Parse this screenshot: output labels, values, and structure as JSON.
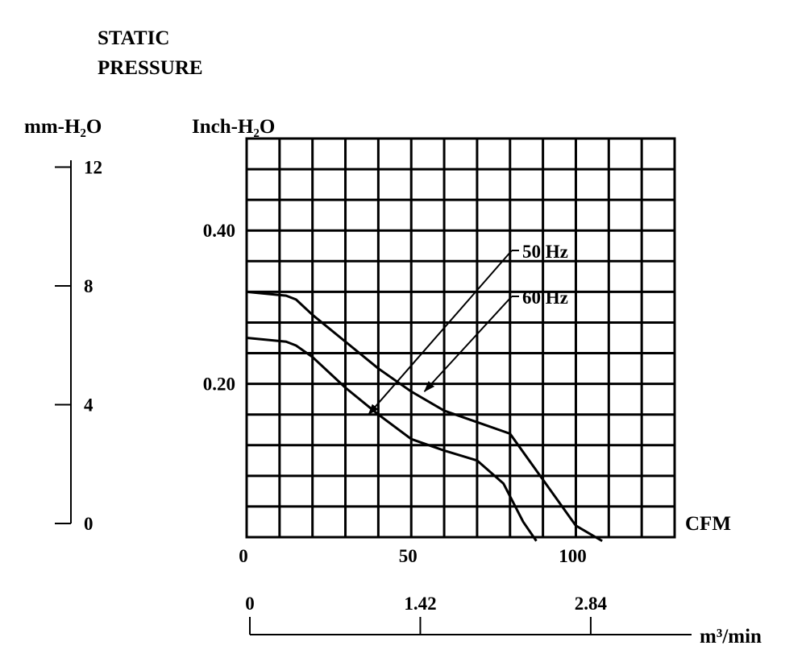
{
  "chart_data": {
    "type": "line",
    "title": "STATIC PRESSURE",
    "title_lines": [
      "STATIC",
      "PRESSURE"
    ],
    "xlabel": "CFM",
    "ylabel": "Inch-H₂O",
    "y_left_label": "mm-H₂O",
    "x_secondary_label": "m³/min",
    "xlim": [
      0,
      130
    ],
    "ylim": [
      0,
      0.52
    ],
    "grid": true,
    "x_ticks": [
      "0",
      "50",
      "100"
    ],
    "x_tick_values": [
      0,
      50,
      100
    ],
    "y_ticks": [
      "0.20",
      "0.40"
    ],
    "y_tick_values": [
      0.2,
      0.4
    ],
    "left_axis": {
      "ticks": [
        "12",
        "8",
        "4",
        "0"
      ],
      "tick_values": [
        12,
        8,
        4,
        0
      ],
      "range": [
        0,
        12.5
      ]
    },
    "secondary_x_axis": {
      "ticks": [
        "0",
        "1.42",
        "2.84"
      ],
      "tick_values": [
        0,
        1.42,
        2.84
      ],
      "range": [
        0,
        3.68
      ]
    },
    "series": [
      {
        "name": "50 Hz",
        "x": [
          0,
          12,
          15,
          20,
          30,
          40,
          50,
          60,
          70,
          78,
          84,
          88
        ],
        "y": [
          0.26,
          0.255,
          0.25,
          0.235,
          0.195,
          0.16,
          0.128,
          0.113,
          0.1,
          0.07,
          0.02,
          -0.005
        ]
      },
      {
        "name": "60 Hz",
        "x": [
          0,
          12,
          15,
          20,
          30,
          40,
          50,
          60,
          70,
          80,
          90,
          100,
          108
        ],
        "y": [
          0.32,
          0.315,
          0.31,
          0.29,
          0.255,
          0.22,
          0.19,
          0.165,
          0.15,
          0.135,
          0.075,
          0.015,
          -0.005
        ]
      }
    ],
    "annotations": [
      {
        "text": "50 Hz",
        "series": "50 Hz"
      },
      {
        "text": "60 Hz",
        "series": "60 Hz"
      }
    ]
  }
}
